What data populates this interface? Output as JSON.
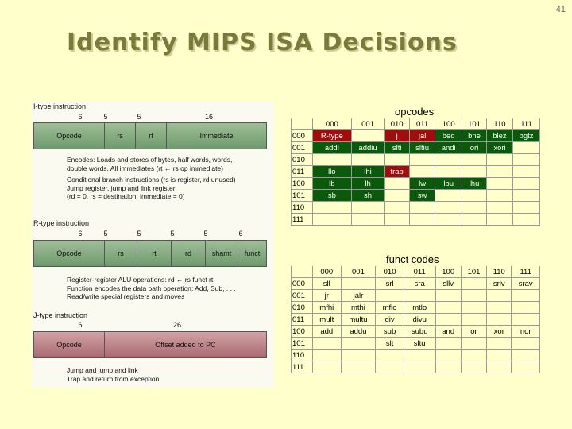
{
  "page_number": "41",
  "title": "Identify MIPS ISA Decisions",
  "figure": {
    "itype": {
      "label": "I-type instruction",
      "bits": [
        "6",
        "5",
        "5",
        "16"
      ],
      "fields": [
        "Opcode",
        "rs",
        "rt",
        "Immediate"
      ],
      "desc1": "Encodes: Loads and stores of bytes, half words, words,\ndouble words. All immediates (rt ← rs op immediate)",
      "desc2": "Conditional branch instructions (rs is register, rd unused)\nJump register, jump and link register\n(rd = 0, rs = destination, immediate = 0)"
    },
    "rtype": {
      "label": "R-type instruction",
      "bits": [
        "6",
        "5",
        "5",
        "5",
        "5",
        "6"
      ],
      "fields": [
        "Opcode",
        "rs",
        "rt",
        "rd",
        "shamt",
        "funct"
      ],
      "desc": "Register-register ALU operations: rd ← rs funct rt\n        Function encodes the data path operation:  Add, Sub, . . .\n        Read/write special registers and moves"
    },
    "jtype": {
      "label": "J-type instruction",
      "bits": [
        "6",
        "26"
      ],
      "fields": [
        "Opcode",
        "Offset added to PC"
      ],
      "desc": "Jump and jump and link\nTrap and return from exception"
    }
  },
  "opcodes": {
    "title": "opcodes",
    "columns": [
      "000",
      "001",
      "010",
      "011",
      "100",
      "101",
      "110",
      "111"
    ],
    "rows": [
      {
        "label": "000",
        "cells": [
          "R-type",
          "",
          "j",
          "jal",
          "beq",
          "bne",
          "blez",
          "bgtz"
        ]
      },
      {
        "label": "001",
        "cells": [
          "addi",
          "addiu",
          "slti",
          "sltiu",
          "andi",
          "ori",
          "xori",
          ""
        ]
      },
      {
        "label": "010",
        "cells": [
          "",
          "",
          "",
          "",
          "",
          "",
          "",
          ""
        ]
      },
      {
        "label": "011",
        "cells": [
          "llo",
          "lhi",
          "trap",
          "",
          "",
          "",
          "",
          ""
        ]
      },
      {
        "label": "100",
        "cells": [
          "lb",
          "lh",
          "",
          "lw",
          "lbu",
          "lhu",
          "",
          ""
        ]
      },
      {
        "label": "101",
        "cells": [
          "sb",
          "sh",
          "",
          "sw",
          "",
          "",
          "",
          ""
        ]
      },
      {
        "label": "110",
        "cells": [
          "",
          "",
          "",
          "",
          "",
          "",
          "",
          ""
        ]
      },
      {
        "label": "111",
        "cells": [
          "",
          "",
          "",
          "",
          "",
          "",
          "",
          ""
        ]
      }
    ],
    "colors": [
      [
        "r",
        "",
        "r",
        "r",
        "g",
        "g",
        "g",
        "g"
      ],
      [
        "g",
        "g",
        "g",
        "g",
        "g",
        "g",
        "g",
        ""
      ],
      [
        "",
        "",
        "",
        "",
        "",
        "",
        "",
        ""
      ],
      [
        "g",
        "g",
        "r",
        "",
        "",
        "",
        "",
        ""
      ],
      [
        "g",
        "g",
        "",
        "g",
        "g",
        "g",
        "",
        ""
      ],
      [
        "g",
        "g",
        "",
        "g",
        "",
        "",
        "",
        ""
      ],
      [
        "",
        "",
        "",
        "",
        "",
        "",
        "",
        ""
      ],
      [
        "",
        "",
        "",
        "",
        "",
        "",
        "",
        ""
      ]
    ]
  },
  "funct": {
    "title": "funct codes",
    "columns": [
      "000",
      "001",
      "010",
      "011",
      "100",
      "101",
      "110",
      "111"
    ],
    "rows": [
      {
        "label": "000",
        "cells": [
          "sll",
          "",
          "srl",
          "sra",
          "sllv",
          "",
          "srlv",
          "srav"
        ]
      },
      {
        "label": "001",
        "cells": [
          "jr",
          "jalr",
          "",
          "",
          "",
          "",
          "",
          ""
        ]
      },
      {
        "label": "010",
        "cells": [
          "mfhi",
          "mthi",
          "mflo",
          "mtlo",
          "",
          "",
          "",
          ""
        ]
      },
      {
        "label": "011",
        "cells": [
          "mult",
          "multu",
          "div",
          "divu",
          "",
          "",
          "",
          ""
        ]
      },
      {
        "label": "100",
        "cells": [
          "add",
          "addu",
          "sub",
          "subu",
          "and",
          "or",
          "xor",
          "nor"
        ]
      },
      {
        "label": "101",
        "cells": [
          "",
          "",
          "slt",
          "sltu",
          "",
          "",
          "",
          ""
        ]
      },
      {
        "label": "110",
        "cells": [
          "",
          "",
          "",
          "",
          "",
          "",
          "",
          ""
        ]
      },
      {
        "label": "111",
        "cells": [
          "",
          "",
          "",
          "",
          "",
          "",
          "",
          ""
        ]
      }
    ]
  },
  "colors": {
    "background": "#ffffcc",
    "title": "#7a7a3a",
    "green_cell": "#0b5a0b",
    "red_cell": "#a10d0d",
    "itype_bar": "#8fb089",
    "jtype_bar": "#b8868c"
  }
}
